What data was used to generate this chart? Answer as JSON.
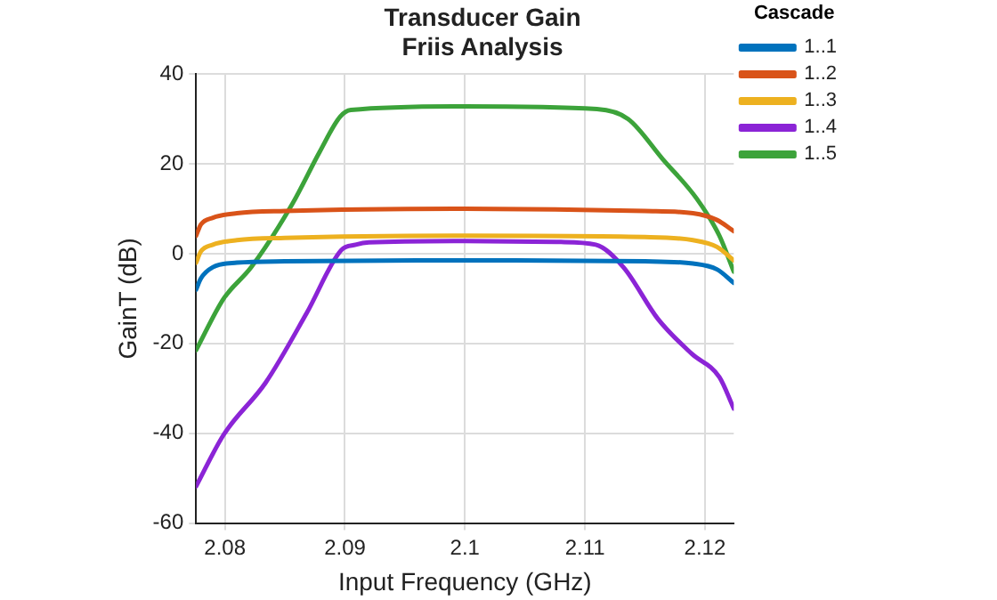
{
  "chart_data": {
    "type": "line",
    "title": [
      "Transducer Gain",
      "Friis Analysis"
    ],
    "xlabel": "Input Frequency (GHz)",
    "ylabel": "GainT (dB)",
    "legend_title": "Cascade",
    "xlim": [
      2.0776,
      2.1224
    ],
    "xticks": [
      2.08,
      2.09,
      2.1,
      2.11,
      2.12
    ],
    "ylim": [
      -60,
      40
    ],
    "yticks": [
      -60,
      -40,
      -20,
      0,
      20,
      40
    ],
    "grid": true,
    "legend": "top right",
    "marker": "none",
    "line_style": "solid",
    "series": [
      {
        "name": "1..1",
        "color": "#0072bd",
        "x": [
          2.0776,
          2.078,
          2.079,
          2.081,
          2.085,
          2.1,
          2.115,
          2.119,
          2.121,
          2.1224
        ],
        "values": [
          -8,
          -5.5,
          -3,
          -2,
          -1.7,
          -1.5,
          -1.7,
          -2.2,
          -3.5,
          -6.5
        ]
      },
      {
        "name": "1..2",
        "color": "#d95319",
        "x": [
          2.0776,
          2.078,
          2.079,
          2.081,
          2.085,
          2.1,
          2.115,
          2.119,
          2.121,
          2.1224
        ],
        "values": [
          4,
          6.5,
          8,
          9,
          9.5,
          10,
          9.5,
          9,
          7.5,
          5
        ]
      },
      {
        "name": "1..3",
        "color": "#edb120",
        "x": [
          2.0776,
          2.078,
          2.079,
          2.081,
          2.085,
          2.1,
          2.115,
          2.119,
          2.121,
          2.1224
        ],
        "values": [
          -2,
          0.5,
          2,
          3,
          3.5,
          4,
          3.7,
          3,
          1.5,
          -1.5
        ]
      },
      {
        "name": "1..4",
        "color": "#8b24d6",
        "x": [
          2.0776,
          2.0799,
          2.0834,
          2.0868,
          2.0897,
          2.0909,
          2.092,
          2.1,
          2.108,
          2.1109,
          2.1132,
          2.1161,
          2.1189,
          2.1212,
          2.1224
        ],
        "values": [
          -51.8,
          -40.3,
          -28.7,
          -13.3,
          0.8,
          2,
          2.5,
          2.8,
          2.6,
          2,
          -3,
          -14.6,
          -22.3,
          -27.5,
          -34.5
        ]
      },
      {
        "name": "1..5",
        "color": "#3ca33a",
        "x": [
          2.0776,
          2.0799,
          2.0822,
          2.0856,
          2.0879,
          2.0896,
          2.0905,
          2.1,
          2.111,
          2.1136,
          2.1165,
          2.1193,
          2.1212,
          2.1224
        ],
        "values": [
          -21.5,
          -10,
          -3,
          11,
          22.7,
          30.5,
          32,
          32.8,
          32.2,
          30,
          21,
          12.3,
          4,
          -4
        ]
      }
    ]
  }
}
